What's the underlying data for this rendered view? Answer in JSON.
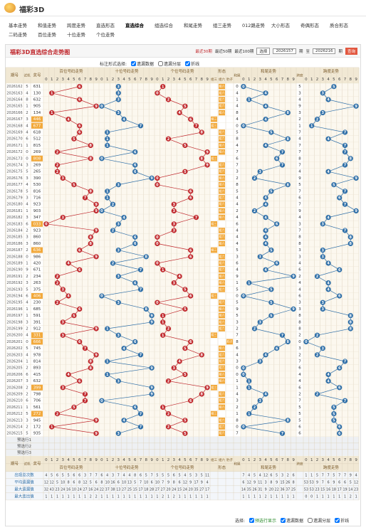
{
  "header": {
    "title": "福彩3D"
  },
  "nav": {
    "row1": [
      "基本走势",
      "和值走势",
      "跨度走势",
      "直选形态",
      "直选综合",
      "组选综合",
      "和尾走势",
      "组三走势",
      "012路走势",
      "大小形态",
      "奇偶形态",
      "质合形态"
    ],
    "row2": [
      "二码走势",
      "百位走势",
      "十位走势",
      "个位走势"
    ],
    "active": "直选综合"
  },
  "panel": {
    "title": "福彩3D直选综合走势图",
    "quick": [
      "最近30期",
      "最近50期",
      "最近100期"
    ],
    "select": "选择",
    "from": "2026157",
    "from_unit": "期",
    "to_label": "至",
    "to": "2026216",
    "query": "查询"
  },
  "options": {
    "label": "标注形式选择:",
    "items": [
      {
        "text": "遗漏数据",
        "checked": true
      },
      {
        "text": "遗漏分层",
        "checked": false
      },
      {
        "text": "折线",
        "checked": true
      }
    ]
  },
  "table": {
    "issue": "期号",
    "test": "试机",
    "number": "奖号",
    "sections": [
      "百位号码走势",
      "十位号码走势",
      "个位号码走势"
    ],
    "colors": [
      "#c0282d",
      "#2f6fa8",
      "#c0282d"
    ],
    "form_title": "形态",
    "form_labels": [
      "组三",
      "组六",
      "豹子"
    ],
    "hw_label": "和尾",
    "hw_title": "和尾走势",
    "hw_color": "#2f6fa8",
    "kd_label": "跨度",
    "kd_title": "跨度走势",
    "kd_color": "#2f6fa8",
    "digit_labels": [
      0,
      1,
      2,
      3,
      4,
      5,
      6,
      7,
      8,
      9
    ],
    "rows": [
      [
        "2026162",
        5,
        "631",
        6,
        3,
        1,
        0,
        5,
        "组六"
      ],
      [
        "2026163",
        4,
        "130",
        1,
        3,
        0,
        4,
        3,
        "组六"
      ],
      [
        "2026164",
        8,
        "632",
        6,
        3,
        2,
        1,
        4,
        "组六"
      ],
      [
        "2026165",
        1,
        "905",
        9,
        0,
        5,
        4,
        9,
        "组六"
      ],
      [
        "2026166",
        2,
        "134",
        1,
        3,
        4,
        8,
        3,
        "组六"
      ],
      [
        "2026167",
        3,
        "446",
        4,
        4,
        6,
        4,
        2,
        "组三"
      ],
      [
        "2026168",
        4,
        "677",
        6,
        7,
        7,
        0,
        1,
        "组三"
      ],
      [
        "2026169",
        4,
        "618",
        6,
        1,
        8,
        5,
        7,
        "组六"
      ],
      [
        "2026170",
        6,
        "512",
        5,
        1,
        2,
        8,
        4,
        "组六"
      ],
      [
        "2026171",
        1,
        "815",
        8,
        1,
        5,
        4,
        7,
        "组六"
      ],
      [
        "2026172",
        0,
        "269",
        2,
        6,
        9,
        7,
        7,
        "组六"
      ],
      [
        "2026173",
        0,
        "808",
        8,
        0,
        8,
        6,
        8,
        "组三"
      ],
      [
        "2026174",
        3,
        "269",
        2,
        6,
        9,
        7,
        7,
        "组六"
      ],
      [
        "2026175",
        5,
        "265",
        2,
        6,
        5,
        3,
        4,
        "组六"
      ],
      [
        "2026176",
        3,
        "390",
        3,
        9,
        0,
        2,
        9,
        "组六"
      ],
      [
        "2026177",
        4,
        "530",
        5,
        3,
        0,
        8,
        5,
        "组六"
      ],
      [
        "2026178",
        5,
        "816",
        8,
        1,
        6,
        5,
        7,
        "组六"
      ],
      [
        "2026179",
        3,
        "716",
        7,
        1,
        6,
        4,
        6,
        "组六"
      ],
      [
        "2026180",
        4,
        "923",
        9,
        2,
        3,
        4,
        7,
        "组六"
      ],
      [
        "2026181",
        1,
        "903",
        9,
        0,
        3,
        2,
        9,
        "组六"
      ],
      [
        "2026182",
        3,
        "347",
        3,
        4,
        7,
        4,
        4,
        "组六"
      ],
      [
        "2026183",
        6,
        "033",
        0,
        3,
        3,
        6,
        3,
        "组三"
      ],
      [
        "2026184",
        2,
        "923",
        9,
        2,
        3,
        4,
        7,
        "组六"
      ],
      [
        "2026185",
        3,
        "860",
        8,
        6,
        0,
        4,
        8,
        "组六"
      ],
      [
        "2026186",
        3,
        "860",
        8,
        6,
        0,
        4,
        8,
        "组六"
      ],
      [
        "2026187",
        2,
        "636",
        6,
        3,
        6,
        5,
        3,
        "组三"
      ],
      [
        "2026188",
        0,
        "986",
        9,
        8,
        6,
        3,
        3,
        "组六"
      ],
      [
        "2026189",
        1,
        "420",
        4,
        2,
        0,
        6,
        4,
        "组六"
      ],
      [
        "2026190",
        9,
        "671",
        6,
        7,
        1,
        4,
        6,
        "组六"
      ],
      [
        "2026191",
        2,
        "234",
        2,
        3,
        4,
        9,
        2,
        "组六"
      ],
      [
        "2026192",
        3,
        "263",
        2,
        6,
        3,
        1,
        4,
        "组六"
      ],
      [
        "2026193",
        5,
        "375",
        3,
        7,
        5,
        5,
        4,
        "组六"
      ],
      [
        "2026194",
        6,
        "406",
        4,
        0,
        6,
        0,
        6,
        "组三"
      ],
      [
        "2026195",
        4,
        "230",
        2,
        3,
        0,
        5,
        3,
        "组六"
      ],
      [
        "2026196",
        1,
        "685",
        6,
        8,
        5,
        9,
        3,
        "组六"
      ],
      [
        "2026197",
        1,
        "591",
        5,
        9,
        1,
        5,
        8,
        "组六"
      ],
      [
        "2026198",
        3,
        "391",
        3,
        9,
        1,
        3,
        8,
        "组六"
      ],
      [
        "2026199",
        2,
        "912",
        9,
        1,
        2,
        2,
        8,
        "组六"
      ],
      [
        "2026200",
        4,
        "331",
        3,
        3,
        1,
        7,
        2,
        "组三"
      ],
      [
        "2026201",
        0,
        "666",
        6,
        6,
        6,
        8,
        0,
        "豹子"
      ],
      [
        "2026202",
        5,
        "745",
        7,
        4,
        5,
        6,
        3,
        "组六"
      ],
      [
        "2026203",
        4,
        "978",
        9,
        7,
        8,
        4,
        2,
        "组六"
      ],
      [
        "2026204",
        1,
        "814",
        8,
        1,
        4,
        3,
        7,
        "组六"
      ],
      [
        "2026205",
        2,
        "893",
        8,
        9,
        3,
        0,
        6,
        "组六"
      ],
      [
        "2026206",
        6,
        "415",
        4,
        1,
        5,
        0,
        4,
        "组六"
      ],
      [
        "2026207",
        3,
        "632",
        6,
        3,
        2,
        1,
        4,
        "组六"
      ],
      [
        "2026208",
        2,
        "399",
        3,
        9,
        9,
        1,
        6,
        "组三"
      ],
      [
        "2026209",
        2,
        "798",
        7,
        9,
        8,
        4,
        2,
        "组六"
      ],
      [
        "2026210",
        6,
        "706",
        7,
        0,
        6,
        3,
        7,
        "组六"
      ],
      [
        "2026211",
        1,
        "561",
        5,
        6,
        1,
        2,
        5,
        "组六"
      ],
      [
        "2026212",
        5,
        "272",
        2,
        7,
        2,
        1,
        5,
        "组三"
      ],
      [
        "2026213",
        3,
        "945",
        9,
        4,
        5,
        8,
        5,
        "组六"
      ],
      [
        "2026214",
        2,
        "172",
        1,
        7,
        2,
        0,
        6,
        "组六"
      ],
      [
        "2026215",
        5,
        "935",
        9,
        3,
        5,
        7,
        6,
        "组六"
      ]
    ],
    "preselect": [
      "预选行1",
      "预选行2",
      "预选行3"
    ],
    "stats": [
      {
        "label": "出现总次数",
        "values": [
          4,
          5,
          6,
          5,
          5,
          6,
          6,
          3,
          7,
          7,
          6,
          4,
          3,
          7,
          4,
          4,
          8,
          6,
          5,
          7,
          5,
          5,
          5,
          6,
          5,
          4,
          5,
          3,
          5,
          11,
          7,
          4,
          5,
          4,
          12,
          6,
          5,
          3,
          2,
          6,
          1,
          1,
          5,
          7,
          7,
          5,
          7,
          7,
          9,
          4
        ]
      },
      {
        "label": "平均遗漏值",
        "values": [
          12,
          12,
          5,
          10,
          8,
          6,
          8,
          12,
          5,
          6,
          8,
          10,
          16,
          6,
          10,
          13,
          5,
          7,
          10,
          6,
          10,
          7,
          9,
          8,
          6,
          12,
          9,
          17,
          9,
          4,
          6,
          12,
          9,
          11,
          3,
          8,
          9,
          15,
          26,
          8,
          53,
          53,
          9,
          7,
          6,
          9,
          6,
          6,
          5,
          12
        ]
      },
      {
        "label": "最大遗漏值",
        "values": [
          32,
          43,
          23,
          24,
          16,
          10,
          24,
          27,
          16,
          24,
          22,
          37,
          38,
          13,
          27,
          25,
          15,
          17,
          18,
          28,
          27,
          27,
          20,
          24,
          15,
          24,
          20,
          35,
          27,
          17,
          14,
          35,
          26,
          31,
          9,
          20,
          22,
          36,
          37,
          25,
          53,
          53,
          23,
          15,
          16,
          18,
          17,
          19,
          14,
          23
        ]
      },
      {
        "label": "最大连出值",
        "values": [
          1,
          1,
          1,
          1,
          1,
          1,
          1,
          1,
          2,
          2,
          1,
          1,
          1,
          1,
          1,
          1,
          1,
          1,
          1,
          1,
          1,
          2,
          1,
          2,
          1,
          1,
          1,
          1,
          1,
          1,
          1,
          1,
          1,
          1,
          2,
          1,
          1,
          1,
          1,
          1,
          0,
          0,
          1,
          1,
          1,
          1,
          1,
          1,
          2,
          1
        ]
      }
    ]
  },
  "footer": {
    "label": "选择:",
    "items": [
      {
        "text": "预选行显示",
        "checked": true
      },
      {
        "text": "遗漏数据",
        "checked": true
      },
      {
        "text": "遗漏分层",
        "checked": false
      },
      {
        "text": "折线",
        "checked": true
      }
    ]
  }
}
